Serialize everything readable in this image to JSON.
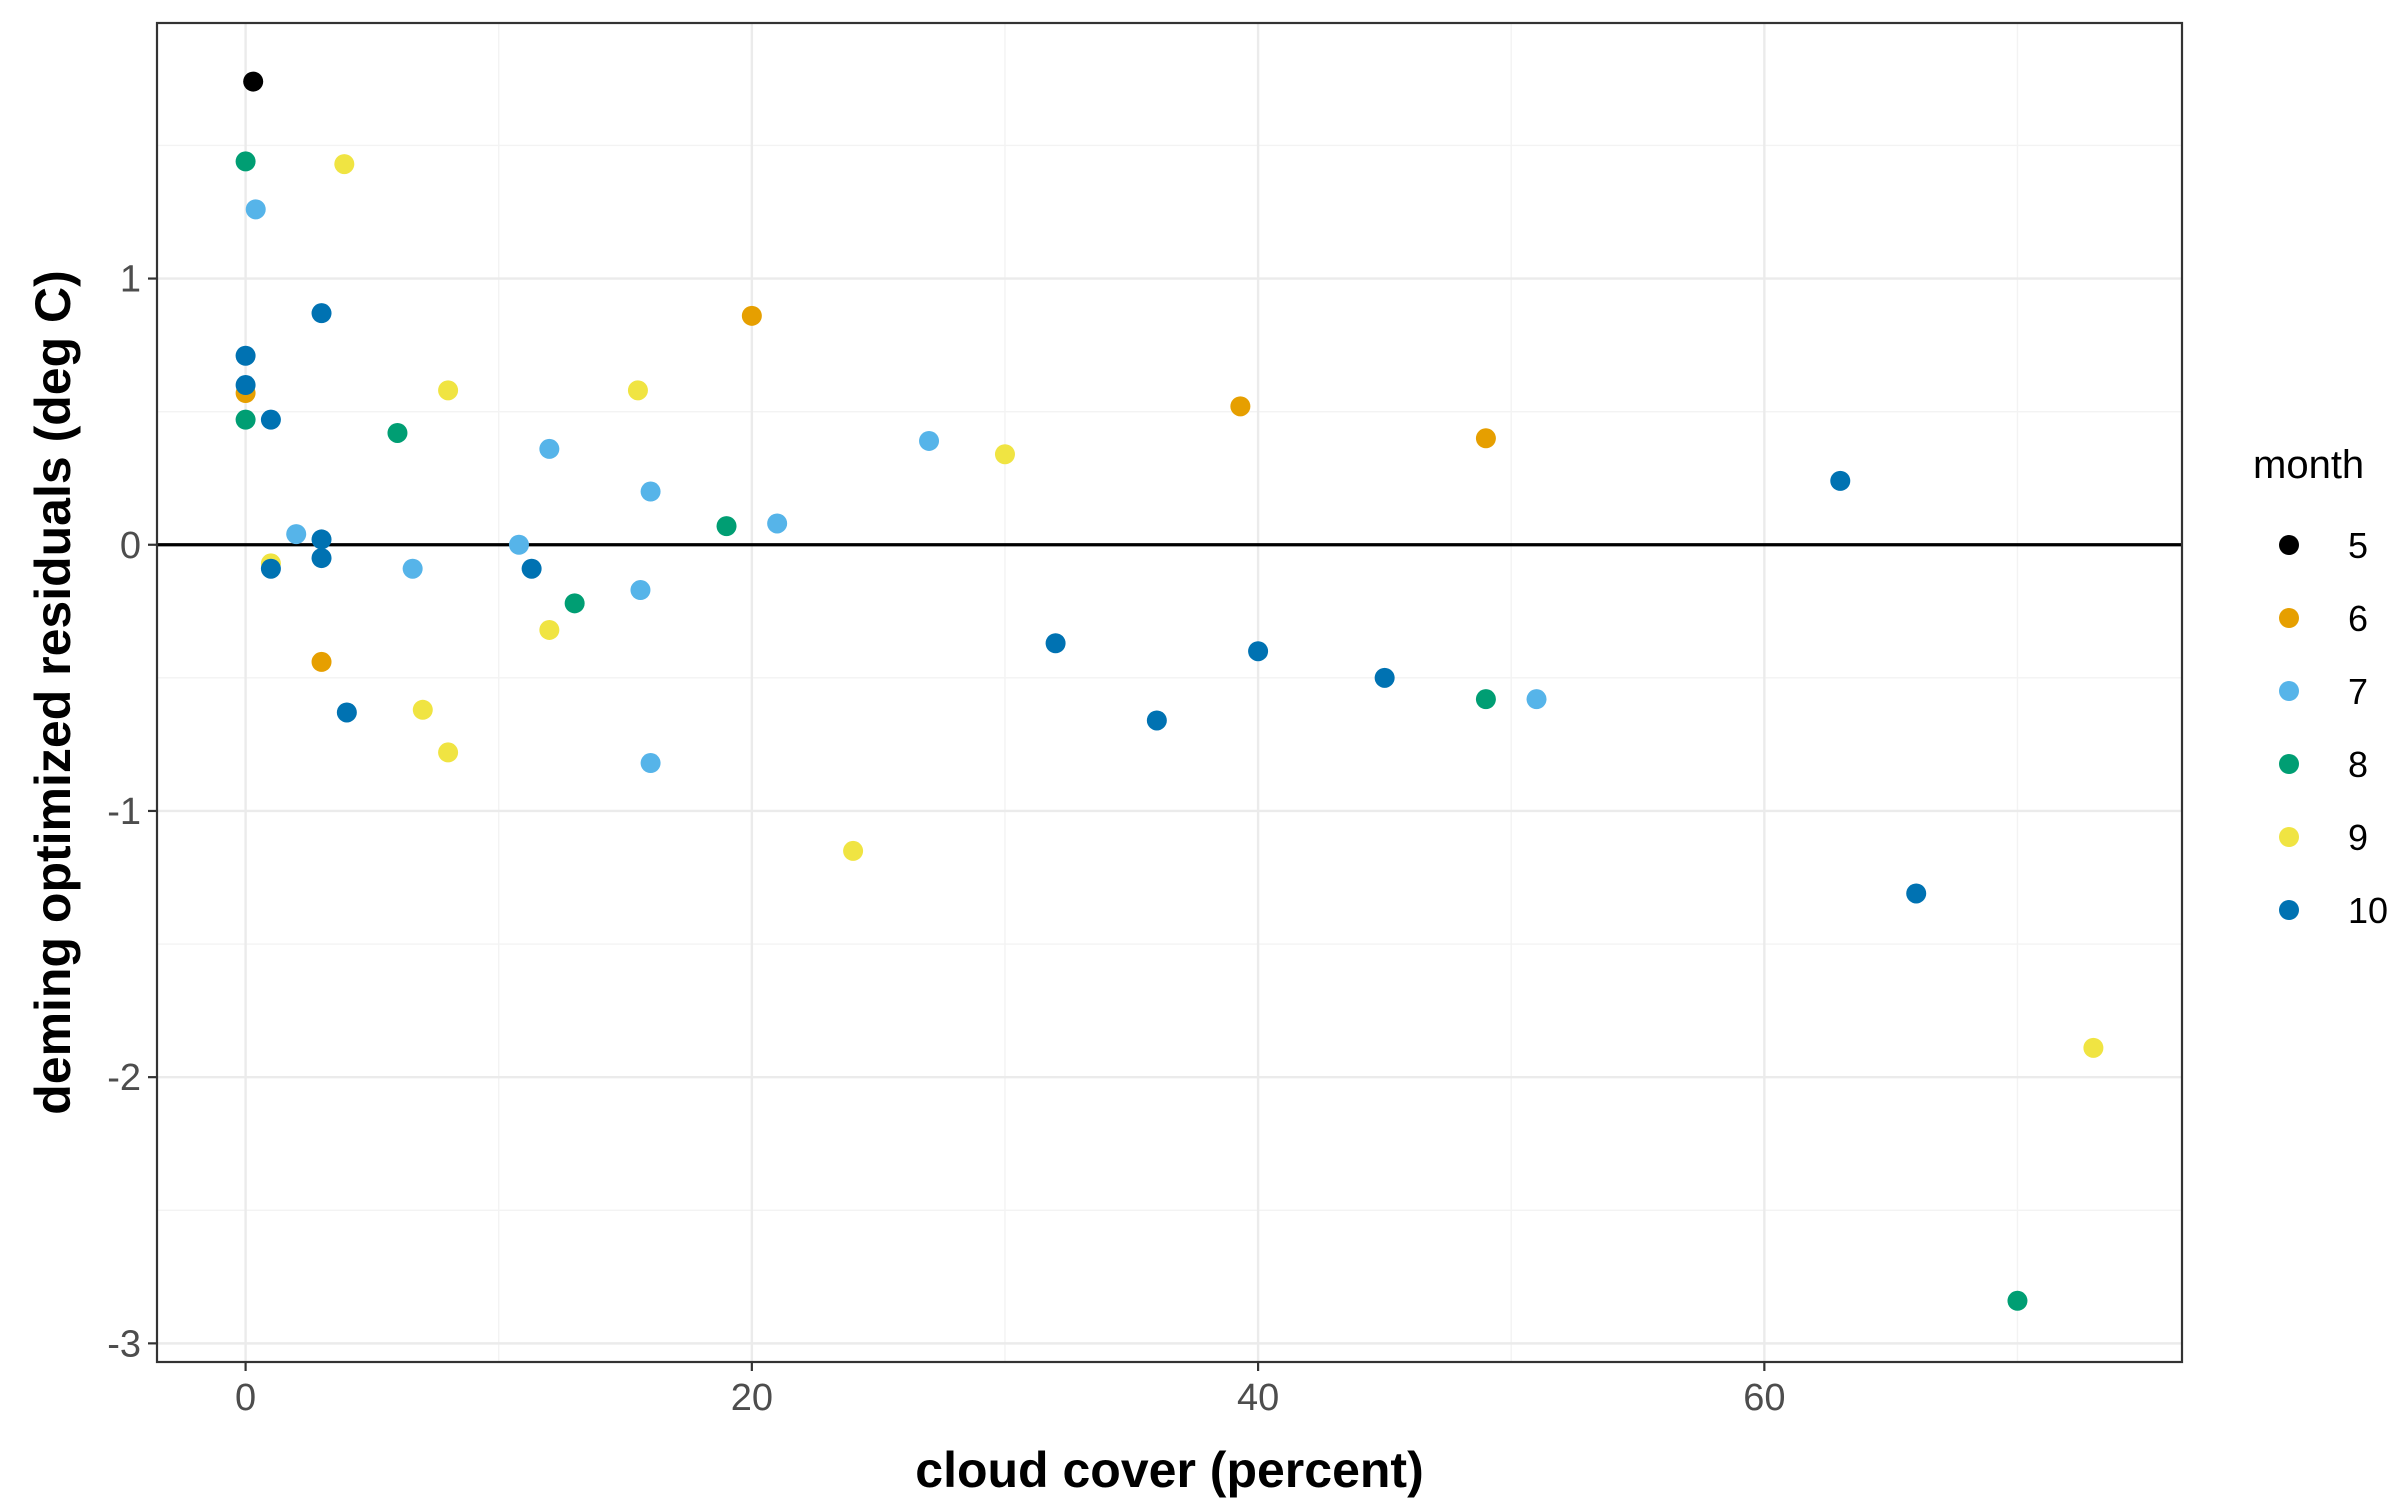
{
  "chart_data": {
    "type": "scatter",
    "title": "",
    "xlabel": "cloud cover (percent)",
    "ylabel": "deming optimized residuals (deg C)",
    "xlim": [
      -3.5,
      76.5
    ],
    "ylim": [
      -3.07,
      1.96
    ],
    "x_ticks": [
      0,
      20,
      40,
      60
    ],
    "x_tick_labels": [
      "0",
      "20",
      "40",
      "60"
    ],
    "y_ticks": [
      -3,
      -2,
      -1,
      0,
      1
    ],
    "y_tick_labels": [
      "-3",
      "-2",
      "-1",
      "0",
      "1"
    ],
    "grid": true,
    "reference_line_y": 0,
    "legend": {
      "title": "month",
      "position": "right"
    },
    "series": [
      {
        "name": "5",
        "color": "#000000",
        "points": [
          [
            0.3,
            1.74
          ]
        ]
      },
      {
        "name": "6",
        "color": "#E69F00",
        "points": [
          [
            0,
            0.57
          ],
          [
            3,
            -0.44
          ],
          [
            20,
            0.86
          ],
          [
            39.3,
            0.52
          ],
          [
            49,
            0.4
          ]
        ]
      },
      {
        "name": "7",
        "color": "#56B4E9",
        "points": [
          [
            0.4,
            1.26
          ],
          [
            2,
            0.04
          ],
          [
            6.6,
            -0.09
          ],
          [
            10.8,
            0.0
          ],
          [
            12,
            0.36
          ],
          [
            15.6,
            -0.17
          ],
          [
            16,
            0.2
          ],
          [
            16,
            -0.82
          ],
          [
            21,
            0.08
          ],
          [
            27,
            0.39
          ],
          [
            51,
            -0.58
          ]
        ]
      },
      {
        "name": "8",
        "color": "#009E73",
        "points": [
          [
            0,
            1.44
          ],
          [
            0,
            0.47
          ],
          [
            6,
            0.42
          ],
          [
            13,
            -0.22
          ],
          [
            19,
            0.07
          ],
          [
            49,
            -0.58
          ],
          [
            70,
            -2.84
          ]
        ]
      },
      {
        "name": "9",
        "color": "#F0E442",
        "points": [
          [
            1,
            -0.07
          ],
          [
            3.9,
            1.43
          ],
          [
            7,
            -0.62
          ],
          [
            8,
            0.58
          ],
          [
            8,
            -0.78
          ],
          [
            12,
            -0.32
          ],
          [
            15.5,
            0.58
          ],
          [
            24,
            -1.15
          ],
          [
            30,
            0.34
          ],
          [
            73,
            -1.89
          ]
        ]
      },
      {
        "name": "10",
        "color": "#0072B2",
        "points": [
          [
            0,
            0.71
          ],
          [
            0,
            0.6
          ],
          [
            1,
            0.47
          ],
          [
            1,
            -0.09
          ],
          [
            3,
            0.87
          ],
          [
            3,
            0.02
          ],
          [
            3,
            -0.05
          ],
          [
            4,
            -0.63
          ],
          [
            11.3,
            -0.09
          ],
          [
            32,
            -0.37
          ],
          [
            36,
            -0.66
          ],
          [
            40,
            -0.4
          ],
          [
            45,
            -0.5
          ],
          [
            63,
            0.24
          ],
          [
            66,
            -1.31
          ]
        ]
      }
    ]
  }
}
